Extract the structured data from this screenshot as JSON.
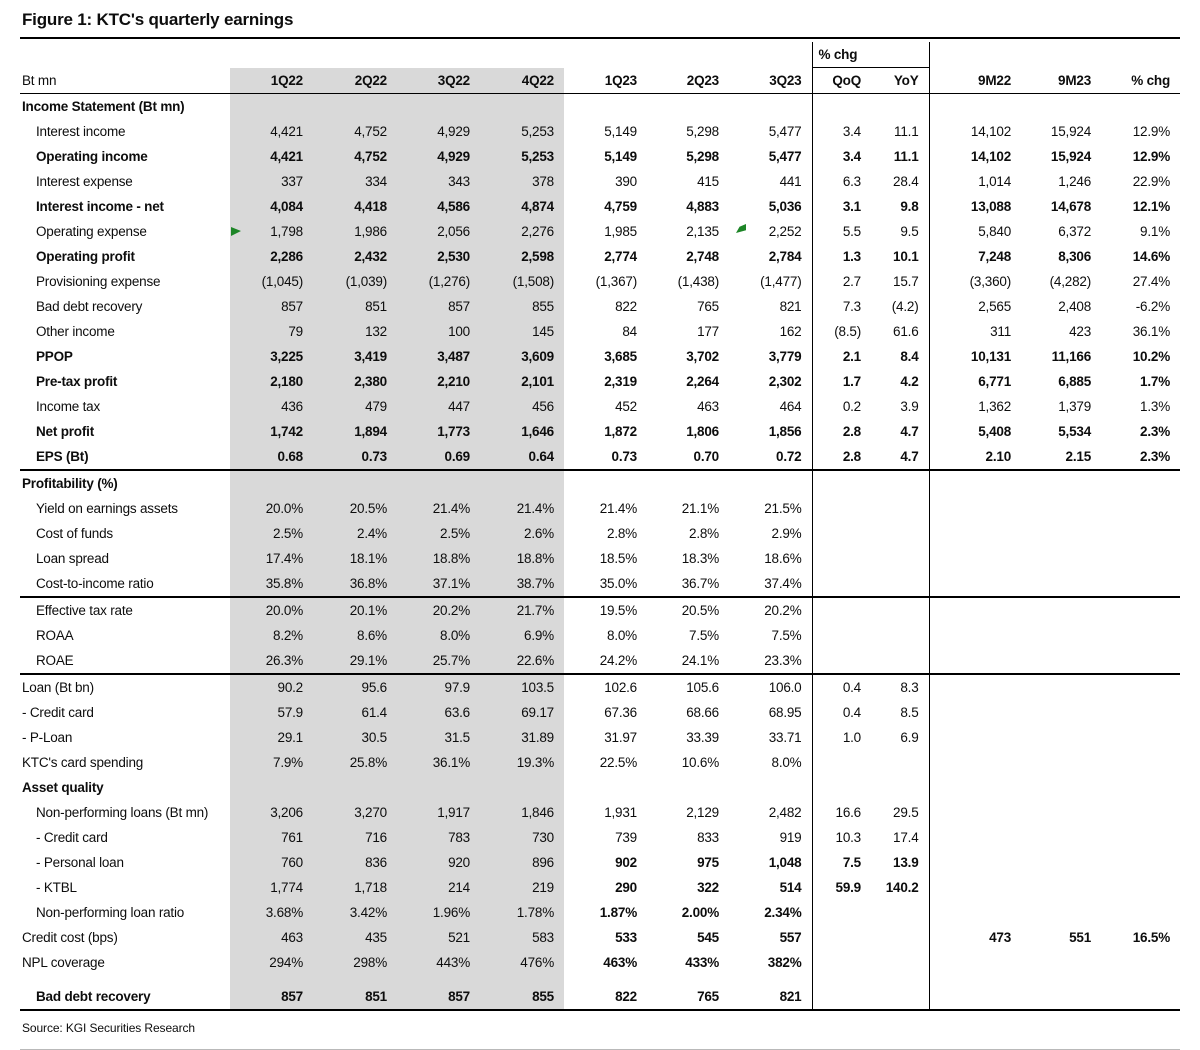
{
  "figure_title": "Figure 1: KTC's quarterly earnings",
  "source": "Source: KGI Securities Research",
  "colors": {
    "shade": "#d9d9d9",
    "flag_green": "#1d8527",
    "rule": "#000000",
    "text": "#0d0d0d"
  },
  "icons": {
    "comment_flag": "green-triangle-flag"
  },
  "table": {
    "unit_label": "Bt mn",
    "pct_chg_group_label": "% chg",
    "columns": [
      "1Q22",
      "2Q22",
      "3Q22",
      "4Q22",
      "1Q23",
      "2Q23",
      "3Q23",
      "QoQ",
      "YoY",
      "9M22",
      "9M23",
      "% chg"
    ],
    "rows": [
      {
        "type": "section",
        "label": "Income Statement (Bt mn)",
        "indent": 0,
        "values": [
          "",
          "",
          "",
          "",
          "",
          "",
          "",
          "",
          "",
          "",
          "",
          ""
        ]
      },
      {
        "type": "data",
        "label": "Interest income",
        "indent": 1,
        "values": [
          "4,421",
          "4,752",
          "4,929",
          "5,253",
          "5,149",
          "5,298",
          "5,477",
          "3.4",
          "11.1",
          "14,102",
          "15,924",
          "12.9%"
        ]
      },
      {
        "type": "data",
        "label": "Operating income",
        "indent": 1,
        "bold": true,
        "values": [
          "4,421",
          "4,752",
          "4,929",
          "5,253",
          "5,149",
          "5,298",
          "5,477",
          "3.4",
          "11.1",
          "14,102",
          "15,924",
          "12.9%"
        ]
      },
      {
        "type": "data",
        "label": "Interest expense",
        "indent": 1,
        "values": [
          "337",
          "334",
          "343",
          "378",
          "390",
          "415",
          "441",
          "6.3",
          "28.4",
          "1,014",
          "1,246",
          "22.9%"
        ]
      },
      {
        "type": "data",
        "label": "Interest income - net",
        "indent": 1,
        "bold": true,
        "values": [
          "4,084",
          "4,418",
          "4,586",
          "4,874",
          "4,759",
          "4,883",
          "5,036",
          "3.1",
          "9.8",
          "13,088",
          "14,678",
          "12.1%"
        ]
      },
      {
        "type": "data",
        "label": "Operating expense",
        "indent": 1,
        "markers": [
          {
            "cell": 0,
            "pos": "left"
          },
          {
            "cell": 5,
            "pos": "right"
          }
        ],
        "values": [
          "1,798",
          "1,986",
          "2,056",
          "2,276",
          "1,985",
          "2,135",
          "2,252",
          "5.5",
          "9.5",
          "5,840",
          "6,372",
          "9.1%"
        ]
      },
      {
        "type": "data",
        "label": "Operating profit",
        "indent": 1,
        "bold": true,
        "values": [
          "2,286",
          "2,432",
          "2,530",
          "2,598",
          "2,774",
          "2,748",
          "2,784",
          "1.3",
          "10.1",
          "7,248",
          "8,306",
          "14.6%"
        ]
      },
      {
        "type": "data",
        "label": "Provisioning expense",
        "indent": 1,
        "values": [
          "(1,045)",
          "(1,039)",
          "(1,276)",
          "(1,508)",
          "(1,367)",
          "(1,438)",
          "(1,477)",
          "2.7",
          "15.7",
          "(3,360)",
          "(4,282)",
          "27.4%"
        ]
      },
      {
        "type": "data",
        "label": "Bad debt recovery",
        "indent": 1,
        "values": [
          "857",
          "851",
          "857",
          "855",
          "822",
          "765",
          "821",
          "7.3",
          "(4.2)",
          "2,565",
          "2,408",
          "-6.2%"
        ]
      },
      {
        "type": "data",
        "label": "Other income",
        "indent": 1,
        "values": [
          "79",
          "132",
          "100",
          "145",
          "84",
          "177",
          "162",
          "(8.5)",
          "61.6",
          "311",
          "423",
          "36.1%"
        ]
      },
      {
        "type": "data",
        "label": "PPOP",
        "indent": 1,
        "bold": true,
        "values": [
          "3,225",
          "3,419",
          "3,487",
          "3,609",
          "3,685",
          "3,702",
          "3,779",
          "2.1",
          "8.4",
          "10,131",
          "11,166",
          "10.2%"
        ]
      },
      {
        "type": "data",
        "label": "Pre-tax profit",
        "indent": 1,
        "bold": true,
        "values": [
          "2,180",
          "2,380",
          "2,210",
          "2,101",
          "2,319",
          "2,264",
          "2,302",
          "1.7",
          "4.2",
          "6,771",
          "6,885",
          "1.7%"
        ]
      },
      {
        "type": "data",
        "label": "Income tax",
        "indent": 1,
        "values": [
          "436",
          "479",
          "447",
          "456",
          "452",
          "463",
          "464",
          "0.2",
          "3.9",
          "1,362",
          "1,379",
          "1.3%"
        ]
      },
      {
        "type": "data",
        "label": "Net profit",
        "indent": 1,
        "bold": true,
        "values": [
          "1,742",
          "1,894",
          "1,773",
          "1,646",
          "1,872",
          "1,806",
          "1,856",
          "2.8",
          "4.7",
          "5,408",
          "5,534",
          "2.3%"
        ]
      },
      {
        "type": "data",
        "label": "EPS (Bt)",
        "indent": 1,
        "bold": true,
        "values": [
          "0.68",
          "0.73",
          "0.69",
          "0.64",
          "0.73",
          "0.70",
          "0.72",
          "2.8",
          "4.7",
          "2.10",
          "2.15",
          "2.3%"
        ]
      },
      {
        "type": "section",
        "label": "Profitability (%)",
        "indent": 0,
        "divider_above": true,
        "values": [
          "",
          "",
          "",
          "",
          "",
          "",
          "",
          "",
          "",
          "",
          "",
          ""
        ]
      },
      {
        "type": "data",
        "label": "Yield on earnings assets",
        "indent": 1,
        "values": [
          "20.0%",
          "20.5%",
          "21.4%",
          "21.4%",
          "21.4%",
          "21.1%",
          "21.5%",
          "",
          "",
          "",
          "",
          ""
        ]
      },
      {
        "type": "data",
        "label": "Cost of funds",
        "indent": 1,
        "values": [
          "2.5%",
          "2.4%",
          "2.5%",
          "2.6%",
          "2.8%",
          "2.8%",
          "2.9%",
          "",
          "",
          "",
          "",
          ""
        ]
      },
      {
        "type": "data",
        "label": "Loan spread",
        "indent": 1,
        "values": [
          "17.4%",
          "18.1%",
          "18.8%",
          "18.8%",
          "18.5%",
          "18.3%",
          "18.6%",
          "",
          "",
          "",
          "",
          ""
        ]
      },
      {
        "type": "data",
        "label": "Cost-to-income ratio",
        "indent": 1,
        "values": [
          "35.8%",
          "36.8%",
          "37.1%",
          "38.7%",
          "35.0%",
          "36.7%",
          "37.4%",
          "",
          "",
          "",
          "",
          ""
        ]
      },
      {
        "type": "data",
        "label": "Effective tax rate",
        "indent": 1,
        "divider_above": true,
        "values": [
          "20.0%",
          "20.1%",
          "20.2%",
          "21.7%",
          "19.5%",
          "20.5%",
          "20.2%",
          "",
          "",
          "",
          "",
          ""
        ]
      },
      {
        "type": "data",
        "label": "ROAA",
        "indent": 1,
        "values": [
          "8.2%",
          "8.6%",
          "8.0%",
          "6.9%",
          "8.0%",
          "7.5%",
          "7.5%",
          "",
          "",
          "",
          "",
          ""
        ]
      },
      {
        "type": "data",
        "label": "ROAE",
        "indent": 1,
        "values": [
          "26.3%",
          "29.1%",
          "25.7%",
          "22.6%",
          "24.2%",
          "24.1%",
          "23.3%",
          "",
          "",
          "",
          "",
          ""
        ]
      },
      {
        "type": "data",
        "label": "Loan (Bt bn)",
        "indent": 0,
        "divider_above": true,
        "values": [
          "90.2",
          "95.6",
          "97.9",
          "103.5",
          "102.6",
          "105.6",
          "106.0",
          "0.4",
          "8.3",
          "",
          "",
          ""
        ]
      },
      {
        "type": "data",
        "label": "- Credit card",
        "indent": 0,
        "values": [
          "57.9",
          "61.4",
          "63.6",
          "69.17",
          "67.36",
          "68.66",
          "68.95",
          "0.4",
          "8.5",
          "",
          "",
          ""
        ]
      },
      {
        "type": "data",
        "label": "- P-Loan",
        "indent": 0,
        "values": [
          "29.1",
          "30.5",
          "31.5",
          "31.89",
          "31.97",
          "33.39",
          "33.71",
          "1.0",
          "6.9",
          "",
          "",
          ""
        ]
      },
      {
        "type": "data",
        "label": "KTC's card spending",
        "indent": 0,
        "values": [
          "7.9%",
          "25.8%",
          "36.1%",
          "19.3%",
          "22.5%",
          "10.6%",
          "8.0%",
          "",
          "",
          "",
          "",
          ""
        ]
      },
      {
        "type": "section",
        "label": "Asset quality",
        "indent": 0,
        "values": [
          "",
          "",
          "",
          "",
          "",
          "",
          "",
          "",
          "",
          "",
          "",
          ""
        ]
      },
      {
        "type": "data",
        "label": "Non-performing loans (Bt mn)",
        "indent": 1,
        "values": [
          "3,206",
          "3,270",
          "1,917",
          "1,846",
          "1,931",
          "2,129",
          "2,482",
          "16.6",
          "29.5",
          "",
          "",
          ""
        ]
      },
      {
        "type": "data",
        "label": "- Credit card",
        "indent": 1,
        "values": [
          "761",
          "716",
          "783",
          "730",
          "739",
          "833",
          "919",
          "10.3",
          "17.4",
          "",
          "",
          ""
        ]
      },
      {
        "type": "data",
        "label": "- Personal loan",
        "indent": 1,
        "bold_right": true,
        "values": [
          "760",
          "836",
          "920",
          "896",
          "902",
          "975",
          "1,048",
          "7.5",
          "13.9",
          "",
          "",
          ""
        ]
      },
      {
        "type": "data",
        "label": "- KTBL",
        "indent": 1,
        "bold_right": true,
        "values": [
          "1,774",
          "1,718",
          "214",
          "219",
          "290",
          "322",
          "514",
          "59.9",
          "140.2",
          "",
          "",
          ""
        ]
      },
      {
        "type": "data",
        "label": "Non-performing loan ratio",
        "indent": 1,
        "bold_right": true,
        "values": [
          "3.68%",
          "3.42%",
          "1.96%",
          "1.78%",
          "1.87%",
          "2.00%",
          "2.34%",
          "",
          "",
          "",
          "",
          ""
        ]
      },
      {
        "type": "data",
        "label": "Credit cost (bps)",
        "indent": 0,
        "bold_right": true,
        "values": [
          "463",
          "435",
          "521",
          "583",
          "533",
          "545",
          "557",
          "",
          "",
          "473",
          "551",
          "16.5%"
        ]
      },
      {
        "type": "data",
        "label": "NPL coverage",
        "indent": 0,
        "bold_right": true,
        "values": [
          "294%",
          "298%",
          "443%",
          "476%",
          "463%",
          "433%",
          "382%",
          "",
          "",
          "",
          "",
          ""
        ]
      },
      {
        "type": "data",
        "label": "Bad debt recovery",
        "indent": 1,
        "bold": true,
        "spacer_above": true,
        "values": [
          "857",
          "851",
          "857",
          "855",
          "822",
          "765",
          "821",
          "",
          "",
          "",
          "",
          ""
        ]
      }
    ]
  }
}
